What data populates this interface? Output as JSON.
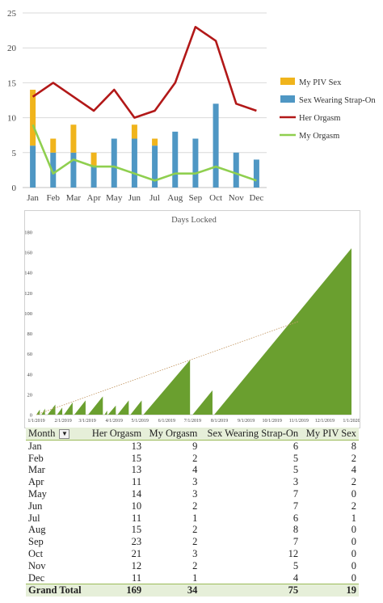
{
  "chart_data": [
    {
      "type": "bar+line",
      "categories": [
        "Jan",
        "Feb",
        "Mar",
        "Apr",
        "May",
        "Jun",
        "Jul",
        "Aug",
        "Sep",
        "Oct",
        "Nov",
        "Dec"
      ],
      "ylim": [
        0,
        25
      ],
      "yticks": [
        0,
        5,
        10,
        15,
        20,
        25
      ],
      "grid": true,
      "legend_position": "right",
      "series": [
        {
          "name": "My PIV Sex",
          "kind": "stacked-bar",
          "color": "#f0b41c",
          "values": [
            8,
            2,
            4,
            2,
            0,
            2,
            1,
            0,
            0,
            0,
            0,
            0
          ]
        },
        {
          "name": "Sex Wearing Strap-On",
          "kind": "stacked-bar",
          "color": "#4f97c4",
          "values": [
            6,
            5,
            5,
            3,
            7,
            7,
            6,
            8,
            7,
            12,
            5,
            4
          ]
        },
        {
          "name": "Her Orgasm",
          "kind": "line",
          "color": "#b21818",
          "values": [
            13,
            15,
            13,
            11,
            14,
            10,
            11,
            15,
            23,
            21,
            12,
            11
          ]
        },
        {
          "name": "My Orgasm",
          "kind": "line",
          "color": "#8fcf4f",
          "values": [
            9,
            2,
            4,
            3,
            3,
            2,
            1,
            2,
            2,
            3,
            2,
            1
          ]
        }
      ]
    },
    {
      "type": "area",
      "title": "Days Locked",
      "color": "#6a9f2f",
      "trendline_color": "#c8a070",
      "ylim": [
        0,
        180
      ],
      "yticks": [
        0,
        20,
        40,
        60,
        80,
        100,
        120,
        140,
        160,
        180
      ],
      "xticks": [
        "1/1/2019",
        "2/1/2019",
        "3/1/2019",
        "4/1/2019",
        "5/1/2019",
        "6/1/2019",
        "7/1/2019",
        "8/1/2019",
        "9/1/2019",
        "10/1/2019",
        "11/1/2019",
        "12/1/2019",
        "1/1/2020"
      ],
      "streaks": [
        {
          "start": "2019-01-01",
          "end": "2019-01-05",
          "peak": 5
        },
        {
          "start": "2019-01-07",
          "end": "2019-01-11",
          "peak": 6
        },
        {
          "start": "2019-01-14",
          "end": "2019-01-23",
          "peak": 10
        },
        {
          "start": "2019-01-25",
          "end": "2019-01-31",
          "peak": 7
        },
        {
          "start": "2019-02-02",
          "end": "2019-02-12",
          "peak": 12
        },
        {
          "start": "2019-02-14",
          "end": "2019-02-27",
          "peak": 14
        },
        {
          "start": "2019-03-02",
          "end": "2019-03-19",
          "peak": 18
        },
        {
          "start": "2019-03-21",
          "end": "2019-03-24",
          "peak": 4
        },
        {
          "start": "2019-03-25",
          "end": "2019-04-03",
          "peak": 9
        },
        {
          "start": "2019-04-05",
          "end": "2019-04-18",
          "peak": 14
        },
        {
          "start": "2019-04-20",
          "end": "2019-05-03",
          "peak": 14
        },
        {
          "start": "2019-05-05",
          "end": "2019-06-28",
          "peak": 54
        },
        {
          "start": "2019-07-01",
          "end": "2019-07-24",
          "peak": 24
        },
        {
          "start": "2019-07-26",
          "end": "2020-01-01",
          "peak": 164
        }
      ],
      "trendline": {
        "start": {
          "x": "2019-01-01",
          "y": 0
        },
        "end": {
          "x": "2019-11-01",
          "y": 92
        }
      }
    }
  ],
  "pivot_table": {
    "headers": [
      "Month",
      "Her Orgasm",
      "My Orgasm",
      "Sex Wearing Strap-On",
      "My PIV Sex"
    ],
    "filter_icon": "filter-dropdown-icon",
    "rows": [
      [
        "Jan",
        "13",
        "9",
        "6",
        "8"
      ],
      [
        "Feb",
        "15",
        "2",
        "5",
        "2"
      ],
      [
        "Mar",
        "13",
        "4",
        "5",
        "4"
      ],
      [
        "Apr",
        "11",
        "3",
        "3",
        "2"
      ],
      [
        "May",
        "14",
        "3",
        "7",
        "0"
      ],
      [
        "Jun",
        "10",
        "2",
        "7",
        "2"
      ],
      [
        "Jul",
        "11",
        "1",
        "6",
        "1"
      ],
      [
        "Aug",
        "15",
        "2",
        "8",
        "0"
      ],
      [
        "Sep",
        "23",
        "2",
        "7",
        "0"
      ],
      [
        "Oct",
        "21",
        "3",
        "12",
        "0"
      ],
      [
        "Nov",
        "12",
        "2",
        "5",
        "0"
      ],
      [
        "Dec",
        "11",
        "1",
        "4",
        "0"
      ]
    ],
    "total": [
      "Grand Total",
      "169",
      "34",
      "75",
      "19"
    ]
  }
}
